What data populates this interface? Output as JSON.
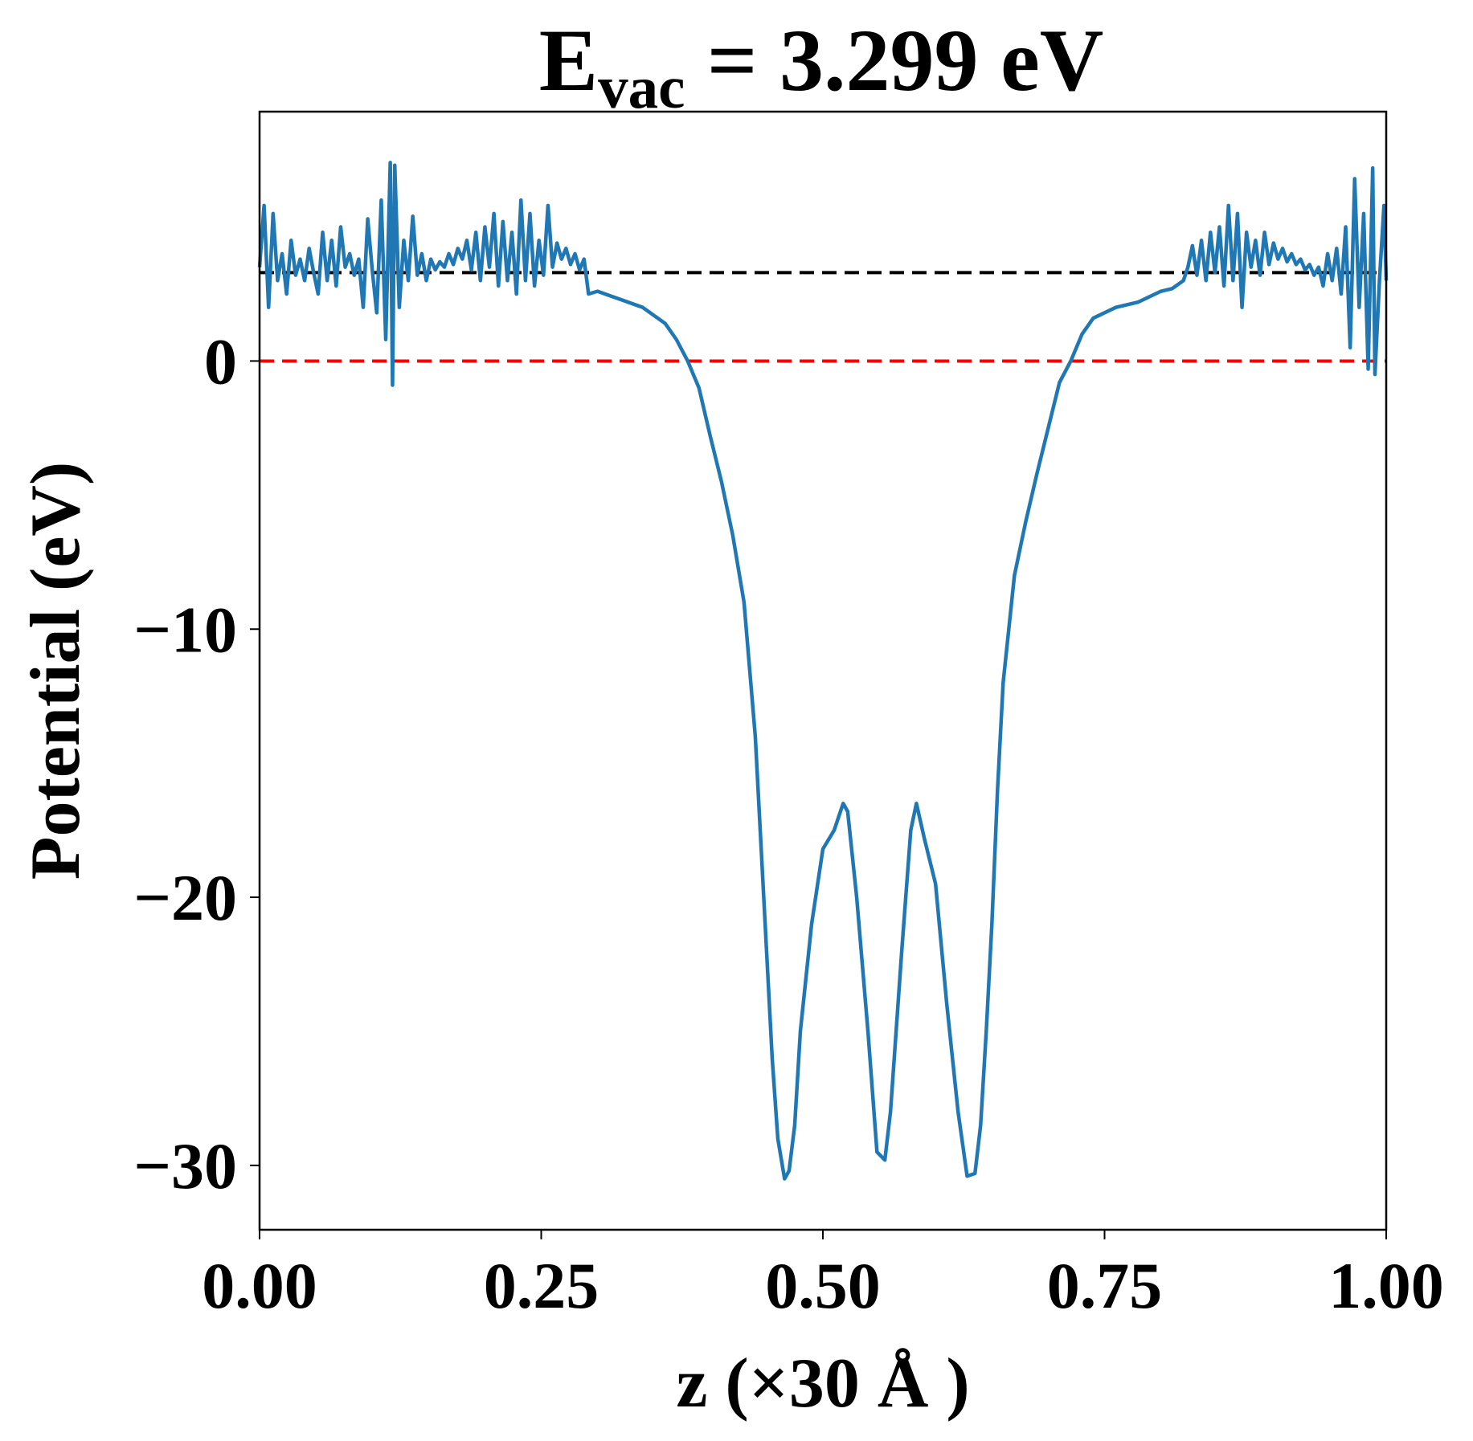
{
  "chart_data": {
    "type": "line",
    "title": [
      "E",
      "vac",
      " = 3.299 eV"
    ],
    "xlabel": "z (×30 Å )",
    "ylabel": "Potential (eV)",
    "xlim": [
      0,
      1
    ],
    "ylim": [
      -32.4,
      9.3
    ],
    "xticks": [
      {
        "value": 0,
        "label": "0.00"
      },
      {
        "value": 0.25,
        "label": "0.25"
      },
      {
        "value": 0.5,
        "label": "0.50"
      },
      {
        "value": 0.75,
        "label": "0.75"
      },
      {
        "value": 1,
        "label": "1.00"
      }
    ],
    "yticks": [
      {
        "value": -30,
        "label": "−30"
      },
      {
        "value": -20,
        "label": "−20"
      },
      {
        "value": -10,
        "label": "−10"
      },
      0
    ],
    "color": "#1f77b4",
    "hlines": [
      {
        "value": 3.299,
        "color": "#000000"
      },
      {
        "value": 0,
        "color": "#ff0000"
      }
    ],
    "x": [
      0.0,
      0.004,
      0.008,
      0.012,
      0.016,
      0.02,
      0.024,
      0.028,
      0.032,
      0.036,
      0.04,
      0.044,
      0.048,
      0.052,
      0.056,
      0.06,
      0.064,
      0.068,
      0.072,
      0.076,
      0.08,
      0.084,
      0.088,
      0.092,
      0.096,
      0.1,
      0.104,
      0.108,
      0.112,
      0.116,
      0.118,
      0.12,
      0.124,
      0.128,
      0.132,
      0.136,
      0.14,
      0.144,
      0.148,
      0.152,
      0.156,
      0.16,
      0.164,
      0.168,
      0.172,
      0.176,
      0.18,
      0.184,
      0.188,
      0.192,
      0.196,
      0.2,
      0.204,
      0.208,
      0.212,
      0.216,
      0.22,
      0.224,
      0.228,
      0.232,
      0.236,
      0.24,
      0.244,
      0.248,
      0.252,
      0.256,
      0.26,
      0.264,
      0.268,
      0.272,
      0.276,
      0.28,
      0.284,
      0.288,
      0.292,
      0.3,
      0.32,
      0.34,
      0.36,
      0.37,
      0.38,
      0.39,
      0.4,
      0.41,
      0.42,
      0.43,
      0.44,
      0.445,
      0.45,
      0.455,
      0.46,
      0.466,
      0.47,
      0.475,
      0.48,
      0.49,
      0.5,
      0.51,
      0.518,
      0.522,
      0.53,
      0.54,
      0.548,
      0.555,
      0.56,
      0.57,
      0.578,
      0.583,
      0.59,
      0.6,
      0.61,
      0.62,
      0.628,
      0.635,
      0.64,
      0.645,
      0.65,
      0.655,
      0.66,
      0.67,
      0.68,
      0.69,
      0.7,
      0.71,
      0.72,
      0.73,
      0.74,
      0.76,
      0.78,
      0.8,
      0.81,
      0.82,
      0.824,
      0.828,
      0.832,
      0.836,
      0.84,
      0.844,
      0.848,
      0.852,
      0.856,
      0.86,
      0.864,
      0.868,
      0.872,
      0.876,
      0.88,
      0.884,
      0.888,
      0.892,
      0.896,
      0.9,
      0.904,
      0.908,
      0.912,
      0.916,
      0.92,
      0.924,
      0.928,
      0.932,
      0.936,
      0.94,
      0.944,
      0.948,
      0.952,
      0.956,
      0.96,
      0.964,
      0.968,
      0.972,
      0.976,
      0.98,
      0.984,
      0.988,
      0.99,
      0.994,
      0.998,
      1.0
    ],
    "values": [
      3.5,
      5.8,
      2.0,
      5.5,
      3.0,
      4.0,
      2.5,
      4.5,
      3.2,
      3.8,
      3.0,
      4.2,
      3.3,
      2.5,
      4.8,
      3.0,
      4.5,
      2.8,
      5.0,
      3.5,
      4.0,
      3.2,
      3.8,
      2.0,
      5.3,
      3.4,
      1.8,
      6.0,
      0.8,
      7.4,
      -0.9,
      7.3,
      2.0,
      4.5,
      3.0,
      5.4,
      3.2,
      4.0,
      3.0,
      3.8,
      3.4,
      3.7,
      3.5,
      4.0,
      3.6,
      4.2,
      3.8,
      4.5,
      3.4,
      4.8,
      3.0,
      5.0,
      3.5,
      5.5,
      2.8,
      5.2,
      3.0,
      4.8,
      2.5,
      6.0,
      3.0,
      5.5,
      2.8,
      4.5,
      3.2,
      5.8,
      3.5,
      4.4,
      3.8,
      4.2,
      3.6,
      4.0,
      3.4,
      3.8,
      2.5,
      2.6,
      2.3,
      2.0,
      1.4,
      0.8,
      0.0,
      -1.0,
      -2.8,
      -4.5,
      -6.5,
      -9.0,
      -14,
      -18,
      -22,
      -26,
      -29,
      -30.5,
      -30.2,
      -28.5,
      -25,
      -21,
      -18.2,
      -17.5,
      -16.5,
      -16.8,
      -20,
      -25,
      -29.5,
      -29.8,
      -28,
      -22,
      -17.5,
      -16.5,
      -17.8,
      -19.5,
      -24,
      -28,
      -30.4,
      -30.3,
      -28.5,
      -25,
      -21,
      -16,
      -12,
      -8.0,
      -6.0,
      -4.2,
      -2.5,
      -0.8,
      0.0,
      1.0,
      1.6,
      2.0,
      2.2,
      2.6,
      2.7,
      3.0,
      3.5,
      4.3,
      3.2,
      4.5,
      3.0,
      4.8,
      3.3,
      5.0,
      2.8,
      5.8,
      3.0,
      5.5,
      2.0,
      4.8,
      3.5,
      4.5,
      3.2,
      4.8,
      3.6,
      4.4,
      3.8,
      4.2,
      3.7,
      4.0,
      3.6,
      3.8,
      3.4,
      3.6,
      3.2,
      3.5,
      2.8,
      4.0,
      3.0,
      4.2,
      2.5,
      5.0,
      0.5,
      6.8,
      2.0,
      5.5,
      -0.3,
      7.2,
      -0.5,
      3.0,
      5.8,
      3.0
    ]
  }
}
